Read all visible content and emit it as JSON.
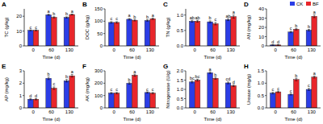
{
  "chart_data": [
    {
      "type": "bar",
      "panel": "A",
      "y_label": "TC (g/kg)",
      "x_label": "Time (d)",
      "categories": [
        "0",
        "60",
        "130"
      ],
      "ylim": [
        0,
        25
      ],
      "yticks": [
        0,
        10,
        20
      ],
      "series": [
        {
          "name": "CK",
          "color": "#2b3de6",
          "values": [
            10.5,
            21,
            19.2
          ],
          "errors": [
            0.3,
            0.4,
            0.4
          ],
          "letters": [
            "c",
            "a",
            "b"
          ]
        },
        {
          "name": "BF",
          "color": "#e8262b",
          "values": [
            10.5,
            19.3,
            21.2
          ],
          "errors": [
            0.3,
            0.4,
            0.3
          ],
          "letters": [
            "c",
            "b",
            "a"
          ]
        }
      ]
    },
    {
      "type": "bar",
      "panel": "B",
      "y_label": "DOC (g/kg)",
      "x_label": "Time (d)",
      "categories": [
        "0",
        "60",
        "130"
      ],
      "ylim": [
        0,
        150
      ],
      "yticks": [
        0,
        50,
        100,
        150
      ],
      "series": [
        {
          "name": "CK",
          "color": "#2b3de6",
          "values": [
            95,
            108,
            103
          ],
          "errors": [
            3,
            3,
            3
          ],
          "letters": [
            "c",
            "a",
            "b"
          ]
        },
        {
          "name": "BF",
          "color": "#e8262b",
          "values": [
            95,
            104,
            110
          ],
          "errors": [
            3,
            3,
            3
          ],
          "letters": [
            "c",
            "b",
            "a"
          ]
        }
      ]
    },
    {
      "type": "bar",
      "panel": "C",
      "y_label": "TN (g/kg)",
      "x_label": "Time (d)",
      "categories": [
        "0",
        "60",
        "130"
      ],
      "ylim": [
        0,
        1.2
      ],
      "yticks": [
        {
          "value": 0,
          "label": "0.0"
        },
        0.5,
        {
          "value": 1,
          "label": "1.0"
        }
      ],
      "series": [
        {
          "name": "CK",
          "color": "#2b3de6",
          "values": [
            0.8,
            0.78,
            0.85
          ],
          "errors": [
            0.03,
            0.03,
            0.03
          ],
          "letters": [
            "ab",
            "b",
            "ab"
          ]
        },
        {
          "name": "BF",
          "color": "#e8262b",
          "values": [
            0.8,
            0.72,
            0.95
          ],
          "errors": [
            0.03,
            0.04,
            0.05
          ],
          "letters": [
            "ab",
            "c",
            "a"
          ]
        }
      ]
    },
    {
      "type": "bar",
      "panel": "D",
      "y_label": "AN (mg/kg)",
      "x_label": "Time (d)",
      "categories": [
        "0",
        "60",
        "130"
      ],
      "ylim": [
        0,
        40
      ],
      "yticks": [
        0,
        10,
        20,
        30,
        40
      ],
      "legend": "upper right",
      "series": [
        {
          "name": "CK",
          "color": "#2b3de6",
          "values": [
            1,
            15,
            17
          ],
          "errors": [
            0.3,
            0.8,
            0.8
          ],
          "letters": [
            "d",
            "c",
            "b"
          ]
        },
        {
          "name": "BF",
          "color": "#e8262b",
          "values": [
            1,
            18,
            32
          ],
          "errors": [
            0.3,
            0.8,
            1.5
          ],
          "letters": [
            "d",
            "b",
            "a"
          ]
        }
      ]
    },
    {
      "type": "bar",
      "panel": "E",
      "y_label": "AP (mg/kg)",
      "x_label": "Time (d)",
      "categories": [
        "0",
        "60",
        "130"
      ],
      "ylim": [
        0,
        3
      ],
      "yticks": [
        0,
        1,
        2,
        3
      ],
      "series": [
        {
          "name": "CK",
          "color": "#2b3de6",
          "values": [
            0.7,
            2.4,
            2.2
          ],
          "errors": [
            0.05,
            0.1,
            0.1
          ],
          "letters": [
            "d",
            "b",
            "b"
          ]
        },
        {
          "name": "BF",
          "color": "#e8262b",
          "values": [
            0.7,
            1.6,
            2.6
          ],
          "errors": [
            0.05,
            0.1,
            0.1
          ],
          "letters": [
            "d",
            "c",
            "a"
          ]
        }
      ]
    },
    {
      "type": "bar",
      "panel": "F",
      "y_label": "AK (mg/kg)",
      "x_label": "Time (d)",
      "categories": [
        "0",
        "60",
        "130"
      ],
      "ylim": [
        0,
        300
      ],
      "yticks": [
        0,
        100,
        200,
        300
      ],
      "series": [
        {
          "name": "CK",
          "color": "#2b3de6",
          "values": [
            120,
            200,
            125
          ],
          "errors": [
            5,
            8,
            5
          ],
          "letters": [
            "c",
            "b",
            "c"
          ]
        },
        {
          "name": "BF",
          "color": "#e8262b",
          "values": [
            120,
            265,
            120
          ],
          "errors": [
            5,
            8,
            5
          ],
          "letters": [
            "c",
            "a",
            "c"
          ]
        }
      ]
    },
    {
      "type": "bar",
      "panel": "G",
      "y_label": "Nitrogenase (U/g)",
      "x_label": "Time (d)",
      "categories": [
        "0",
        "60",
        "130"
      ],
      "ylim": [
        0,
        2
      ],
      "yticks": [
        {
          "value": 0,
          "label": "0.0"
        },
        0.5,
        {
          "value": 1,
          "label": "1.0"
        },
        1.5,
        {
          "value": 2,
          "label": "2.0"
        }
      ],
      "series": [
        {
          "name": "CK",
          "color": "#2b3de6",
          "values": [
            1.4,
            1.9,
            1.35
          ],
          "errors": [
            0.05,
            0.05,
            0.05
          ],
          "letters": [
            "bc",
            "a",
            "cd"
          ]
        },
        {
          "name": "BF",
          "color": "#e8262b",
          "values": [
            1.5,
            1.6,
            1.2
          ],
          "errors": [
            0.05,
            0.05,
            0.05
          ],
          "letters": [
            "bc",
            "b",
            "d"
          ]
        }
      ]
    },
    {
      "type": "bar",
      "panel": "H",
      "y_label": "Urease (mg/g)",
      "x_label": "Time (d)",
      "categories": [
        "0",
        "60",
        "130"
      ],
      "ylim": [
        0,
        1.5
      ],
      "yticks": [
        {
          "value": 0,
          "label": "0.0"
        },
        0.5,
        {
          "value": 1,
          "label": "1.0"
        },
        1.5
      ],
      "series": [
        {
          "name": "CK",
          "color": "#2b3de6",
          "values": [
            0.6,
            0.55,
            0.75
          ],
          "errors": [
            0.03,
            0.03,
            0.04
          ],
          "letters": [
            "c",
            "c",
            "c"
          ]
        },
        {
          "name": "BF",
          "color": "#e8262b",
          "values": [
            0.65,
            1.15,
            1.25
          ],
          "errors": [
            0.03,
            0.05,
            0.04
          ],
          "letters": [
            "c",
            "b",
            "a"
          ]
        }
      ]
    }
  ]
}
